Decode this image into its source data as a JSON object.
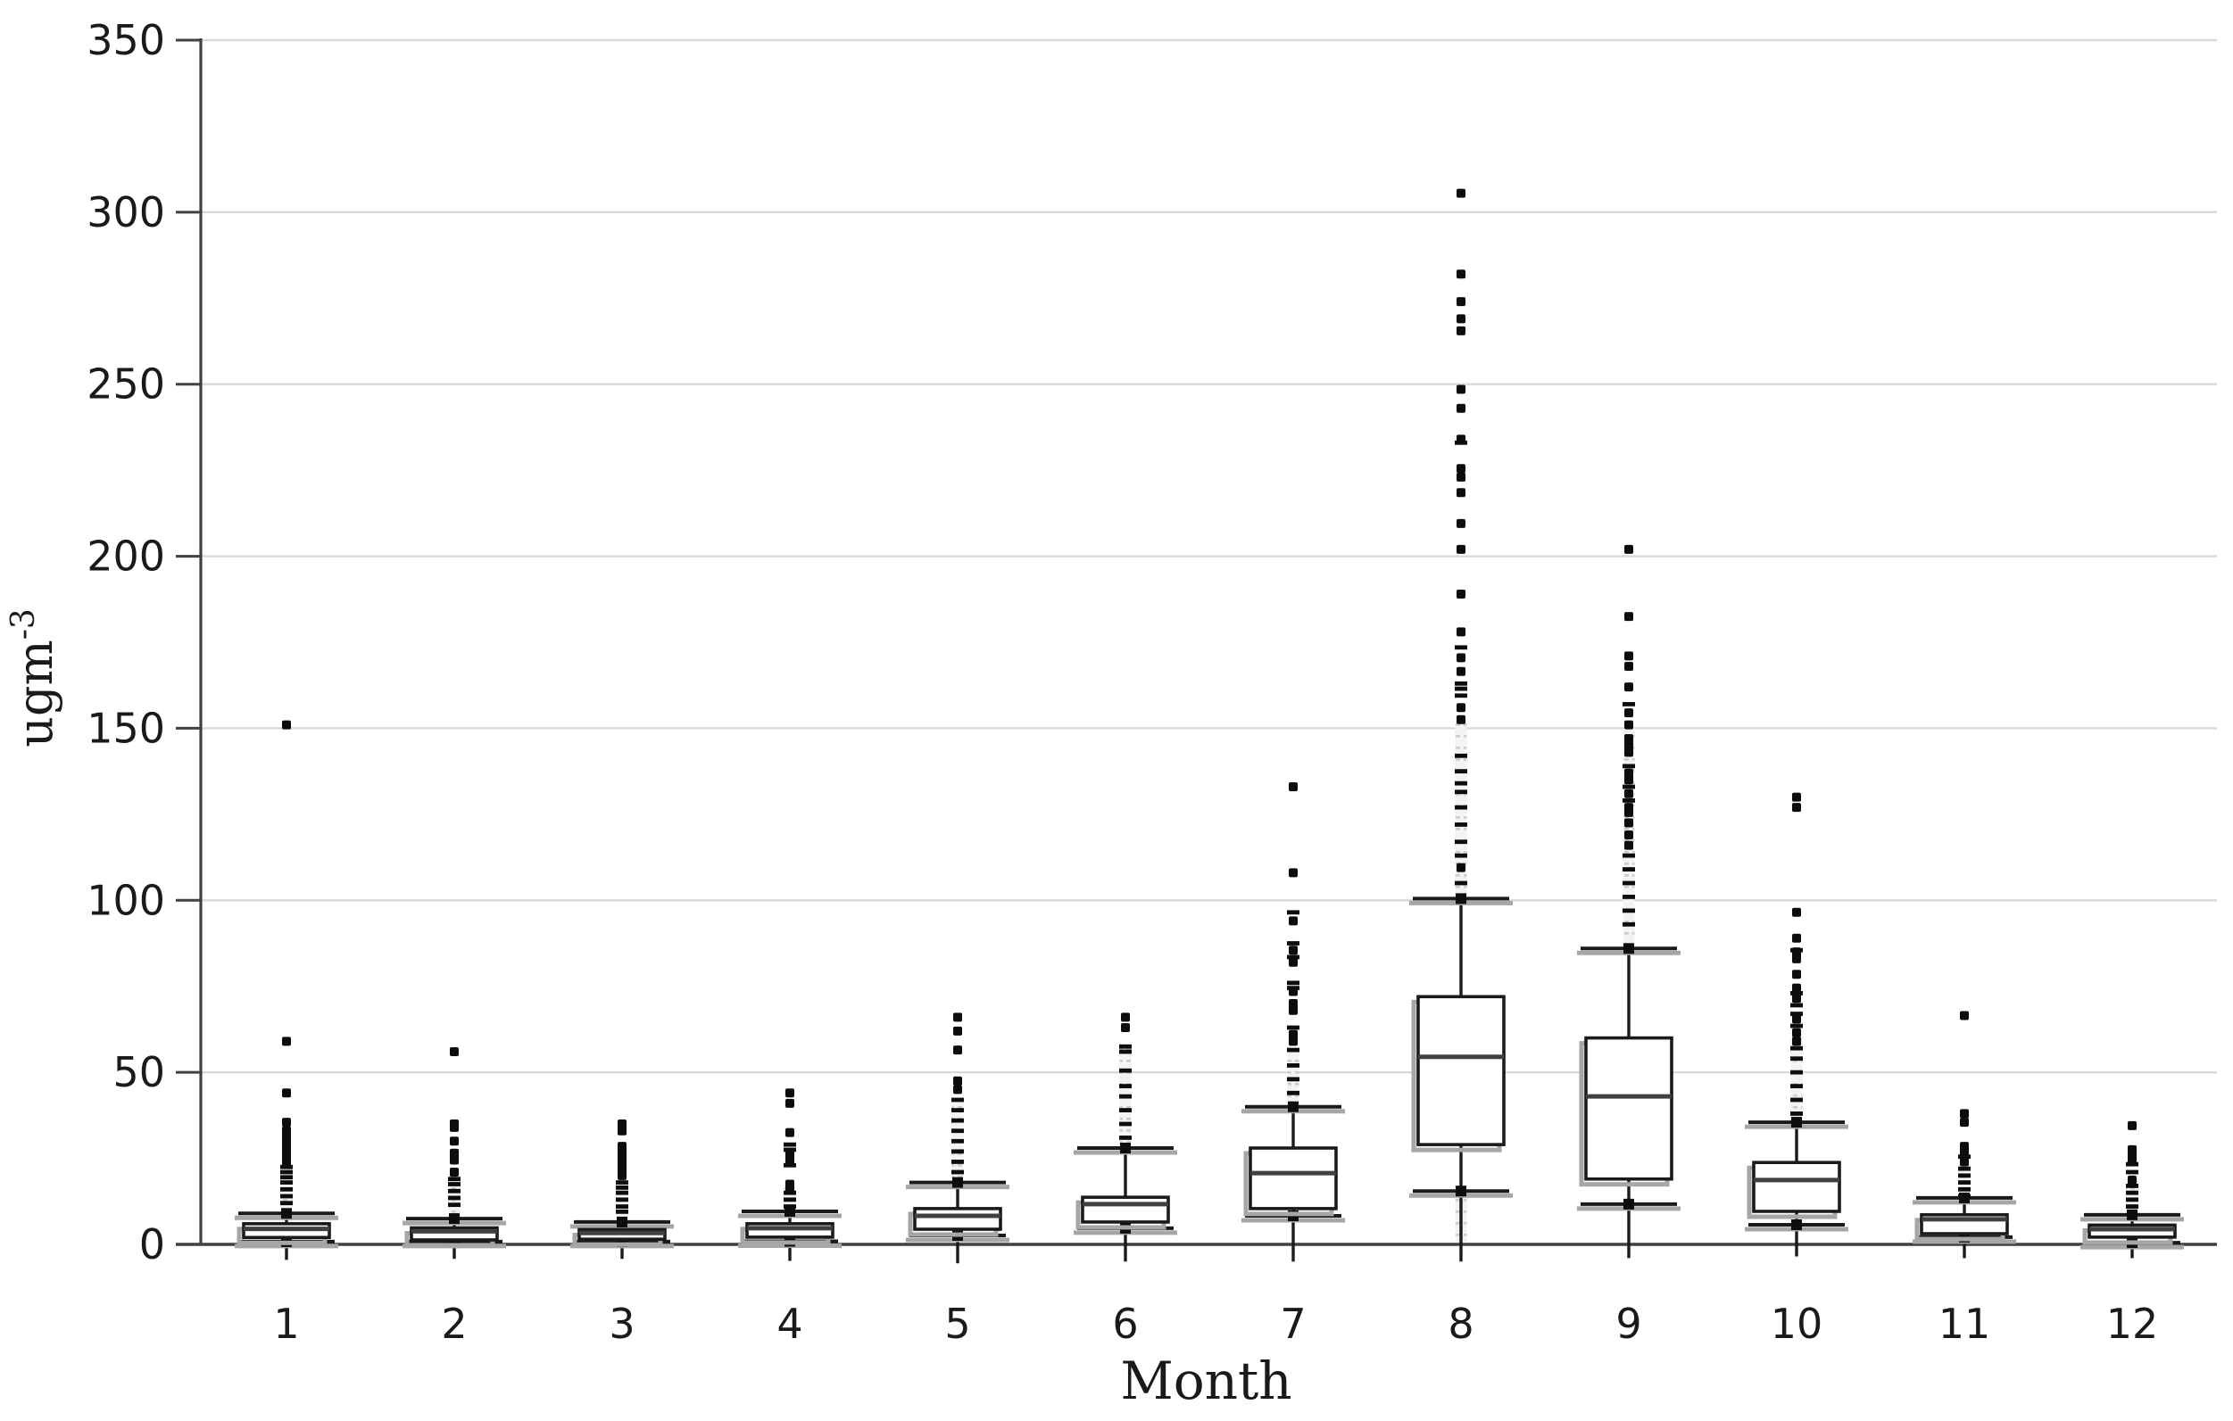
{
  "chart_data": {
    "type": "boxplot",
    "title": "",
    "xlabel": "Month",
    "ylabel": "ugm⁻³",
    "ylabel_base": "ugm",
    "ylabel_sup": "-3",
    "grid": true,
    "legend": "none",
    "y_axis": {
      "min": 0,
      "max": 350,
      "tick_step": 50,
      "tick_labels": [
        "0",
        "50",
        "100",
        "150",
        "200",
        "250",
        "300",
        "350"
      ]
    },
    "categories": [
      "1",
      "2",
      "3",
      "4",
      "5",
      "6",
      "7",
      "8",
      "9",
      "10",
      "11",
      "12"
    ],
    "colors": {
      "box_stroke": "#1a1a1a",
      "median": "#404040",
      "shadow": "#a6a6a6",
      "gridline": "#d9d9d9",
      "axis": "#404040",
      "marker": "#0d0d0d",
      "strip_fill": "#f3f3f3",
      "strip_dot": "#cccccc",
      "background": "#ffffff"
    },
    "months": [
      {
        "label": "1",
        "q1": 2.0,
        "median": 4.5,
        "q3": 6.0,
        "whisker_high": 9.0,
        "whisker_low": 0.8,
        "tail_low": -4.5,
        "strip_high": [
          9.0,
          21.0
        ],
        "strip_low": null,
        "outlier_dots": [
          151,
          59,
          44,
          35.5,
          33,
          31.5,
          30,
          28.5,
          27,
          25.5,
          24
        ],
        "outlier_dashes": [
          22.5,
          21,
          19.5,
          18,
          16,
          14,
          12
        ]
      },
      {
        "label": "2",
        "q1": 1.3,
        "median": 3.8,
        "q3": 4.8,
        "whisker_high": 7.5,
        "whisker_low": 0.8,
        "tail_low": -4.2,
        "strip_high": [
          7.5,
          20.0
        ],
        "strip_low": null,
        "outlier_dots": [
          56,
          35,
          34,
          30,
          26.5,
          24.5,
          21
        ],
        "outlier_dashes": [
          19,
          17.5,
          15.5,
          13.5,
          11.5
        ]
      },
      {
        "label": "3",
        "q1": 1.5,
        "median": 3.3,
        "q3": 4.3,
        "whisker_high": 6.5,
        "whisker_low": 0.8,
        "tail_low": -4.2,
        "strip_high": [
          6.5,
          18.0
        ],
        "strip_low": null,
        "outlier_dots": [
          35,
          33,
          28.5,
          26.5,
          25,
          23,
          21.5,
          20
        ],
        "outlier_dashes": [
          18,
          16.5,
          15,
          13,
          11,
          9.5
        ]
      },
      {
        "label": "4",
        "q1": 2.1,
        "median": 4.7,
        "q3": 6.0,
        "whisker_high": 9.6,
        "whisker_low": 0.9,
        "tail_low": -4.8,
        "strip_high": [
          9.6,
          17.0
        ],
        "strip_low": null,
        "outlier_dots": [
          44,
          41,
          32.5,
          26,
          24,
          17.5,
          16.5
        ],
        "outlier_dashes": [
          29,
          27.5,
          23,
          15,
          13,
          11
        ]
      },
      {
        "label": "5",
        "q1": 4.4,
        "median": 8.3,
        "q3": 10.4,
        "whisker_high": 18.0,
        "whisker_low": 2.6,
        "tail_low": -5.5,
        "strip_high": [
          18.0,
          42.0
        ],
        "strip_low": null,
        "outlier_dots": [
          66,
          62,
          56.5,
          47.5,
          45
        ],
        "outlier_dashes": [
          42,
          39,
          36,
          33,
          30,
          27,
          24,
          21
        ]
      },
      {
        "label": "6",
        "q1": 6.5,
        "median": 11.7,
        "q3": 13.7,
        "whisker_high": 28.0,
        "whisker_low": 4.7,
        "tail_low": -5.0,
        "strip_high": [
          28.0,
          57.5
        ],
        "strip_low": null,
        "outlier_dots": [
          66,
          63
        ],
        "outlier_dashes": [
          57.5,
          56,
          50.5,
          46,
          43,
          39,
          35,
          31
        ]
      },
      {
        "label": "7",
        "q1": 10.4,
        "median": 20.7,
        "q3": 28.0,
        "whisker_high": 40.0,
        "whisker_low": 8.3,
        "tail_low": -5.0,
        "strip_high": [
          40.0,
          57.0
        ],
        "strip_low": null,
        "outlier_dots": [
          133,
          108,
          94,
          85.5,
          82,
          73.5,
          70,
          68,
          61,
          59
        ],
        "outlier_dashes": [
          96.5,
          87.5,
          83.5,
          76,
          74.5,
          63,
          56.5,
          52,
          48,
          44
        ]
      },
      {
        "label": "8",
        "q1": 29.0,
        "median": 54.5,
        "q3": 72.0,
        "whisker_high": 100.5,
        "whisker_low": 15.5,
        "tail_low": -5.0,
        "strip_high": [
          100.5,
          152.0
        ],
        "strip_low": [
          0.5,
          15.5
        ],
        "outlier_dots": [
          305.5,
          282,
          274,
          269,
          265.5,
          248.5,
          243,
          234,
          225.5,
          223,
          218.5,
          209.5,
          202,
          189,
          178,
          170.5,
          166.5,
          156,
          152.5,
          109.5
        ],
        "outlier_dashes": [
          233,
          173.5,
          163,
          161.5,
          159.5,
          142,
          137.5,
          134,
          131.5,
          127,
          122,
          117,
          113,
          105
        ]
      },
      {
        "label": "9",
        "q1": 19.0,
        "median": 43.0,
        "q3": 60.0,
        "whisker_high": 86.0,
        "whisker_low": 11.7,
        "tail_low": -4.0,
        "strip_high": [
          86.0,
          150.0
        ],
        "strip_low": null,
        "outlier_dots": [
          202,
          182.5,
          171,
          168,
          162,
          154.5,
          151,
          147,
          145,
          143,
          137,
          135,
          131,
          127,
          125.5,
          122.5,
          119,
          116
        ],
        "outlier_dashes": [
          157,
          139,
          133,
          129,
          113,
          109,
          105,
          101,
          97,
          93
        ]
      },
      {
        "label": "10",
        "q1": 9.6,
        "median": 18.7,
        "q3": 23.8,
        "whisker_high": 35.5,
        "whisker_low": 5.7,
        "tail_low": -3.5,
        "strip_high": [
          35.5,
          60.0
        ],
        "strip_low": null,
        "outlier_dots": [
          130,
          127,
          96.5,
          89,
          85,
          83,
          78.5,
          74.5,
          71.5,
          65.5,
          61.5,
          59
        ],
        "outlier_dashes": [
          85.5,
          73,
          69.5,
          67,
          63.5,
          57,
          54,
          50,
          46,
          42,
          38
        ]
      },
      {
        "label": "11",
        "q1": 3.1,
        "median": 7.3,
        "q3": 8.6,
        "whisker_high": 13.5,
        "whisker_low": 2.1,
        "tail_low": -4.0,
        "strip_high": [
          13.5,
          24.0
        ],
        "strip_low": null,
        "outlier_dots": [
          66.5,
          38,
          35.5,
          28.5,
          27,
          24
        ],
        "outlier_dashes": [
          25.5,
          22,
          20,
          18,
          16,
          14
        ]
      },
      {
        "label": "12",
        "q1": 2.1,
        "median": 4.4,
        "q3": 5.6,
        "whisker_high": 8.6,
        "whisker_low": 0.5,
        "tail_low": -4.0,
        "strip_high": [
          8.6,
          19.0
        ],
        "strip_low": null,
        "outlier_dots": [
          34.5,
          27.5,
          26,
          24.5,
          18.7
        ],
        "outlier_dashes": [
          23.3,
          21,
          17,
          15,
          13,
          11
        ]
      }
    ]
  }
}
